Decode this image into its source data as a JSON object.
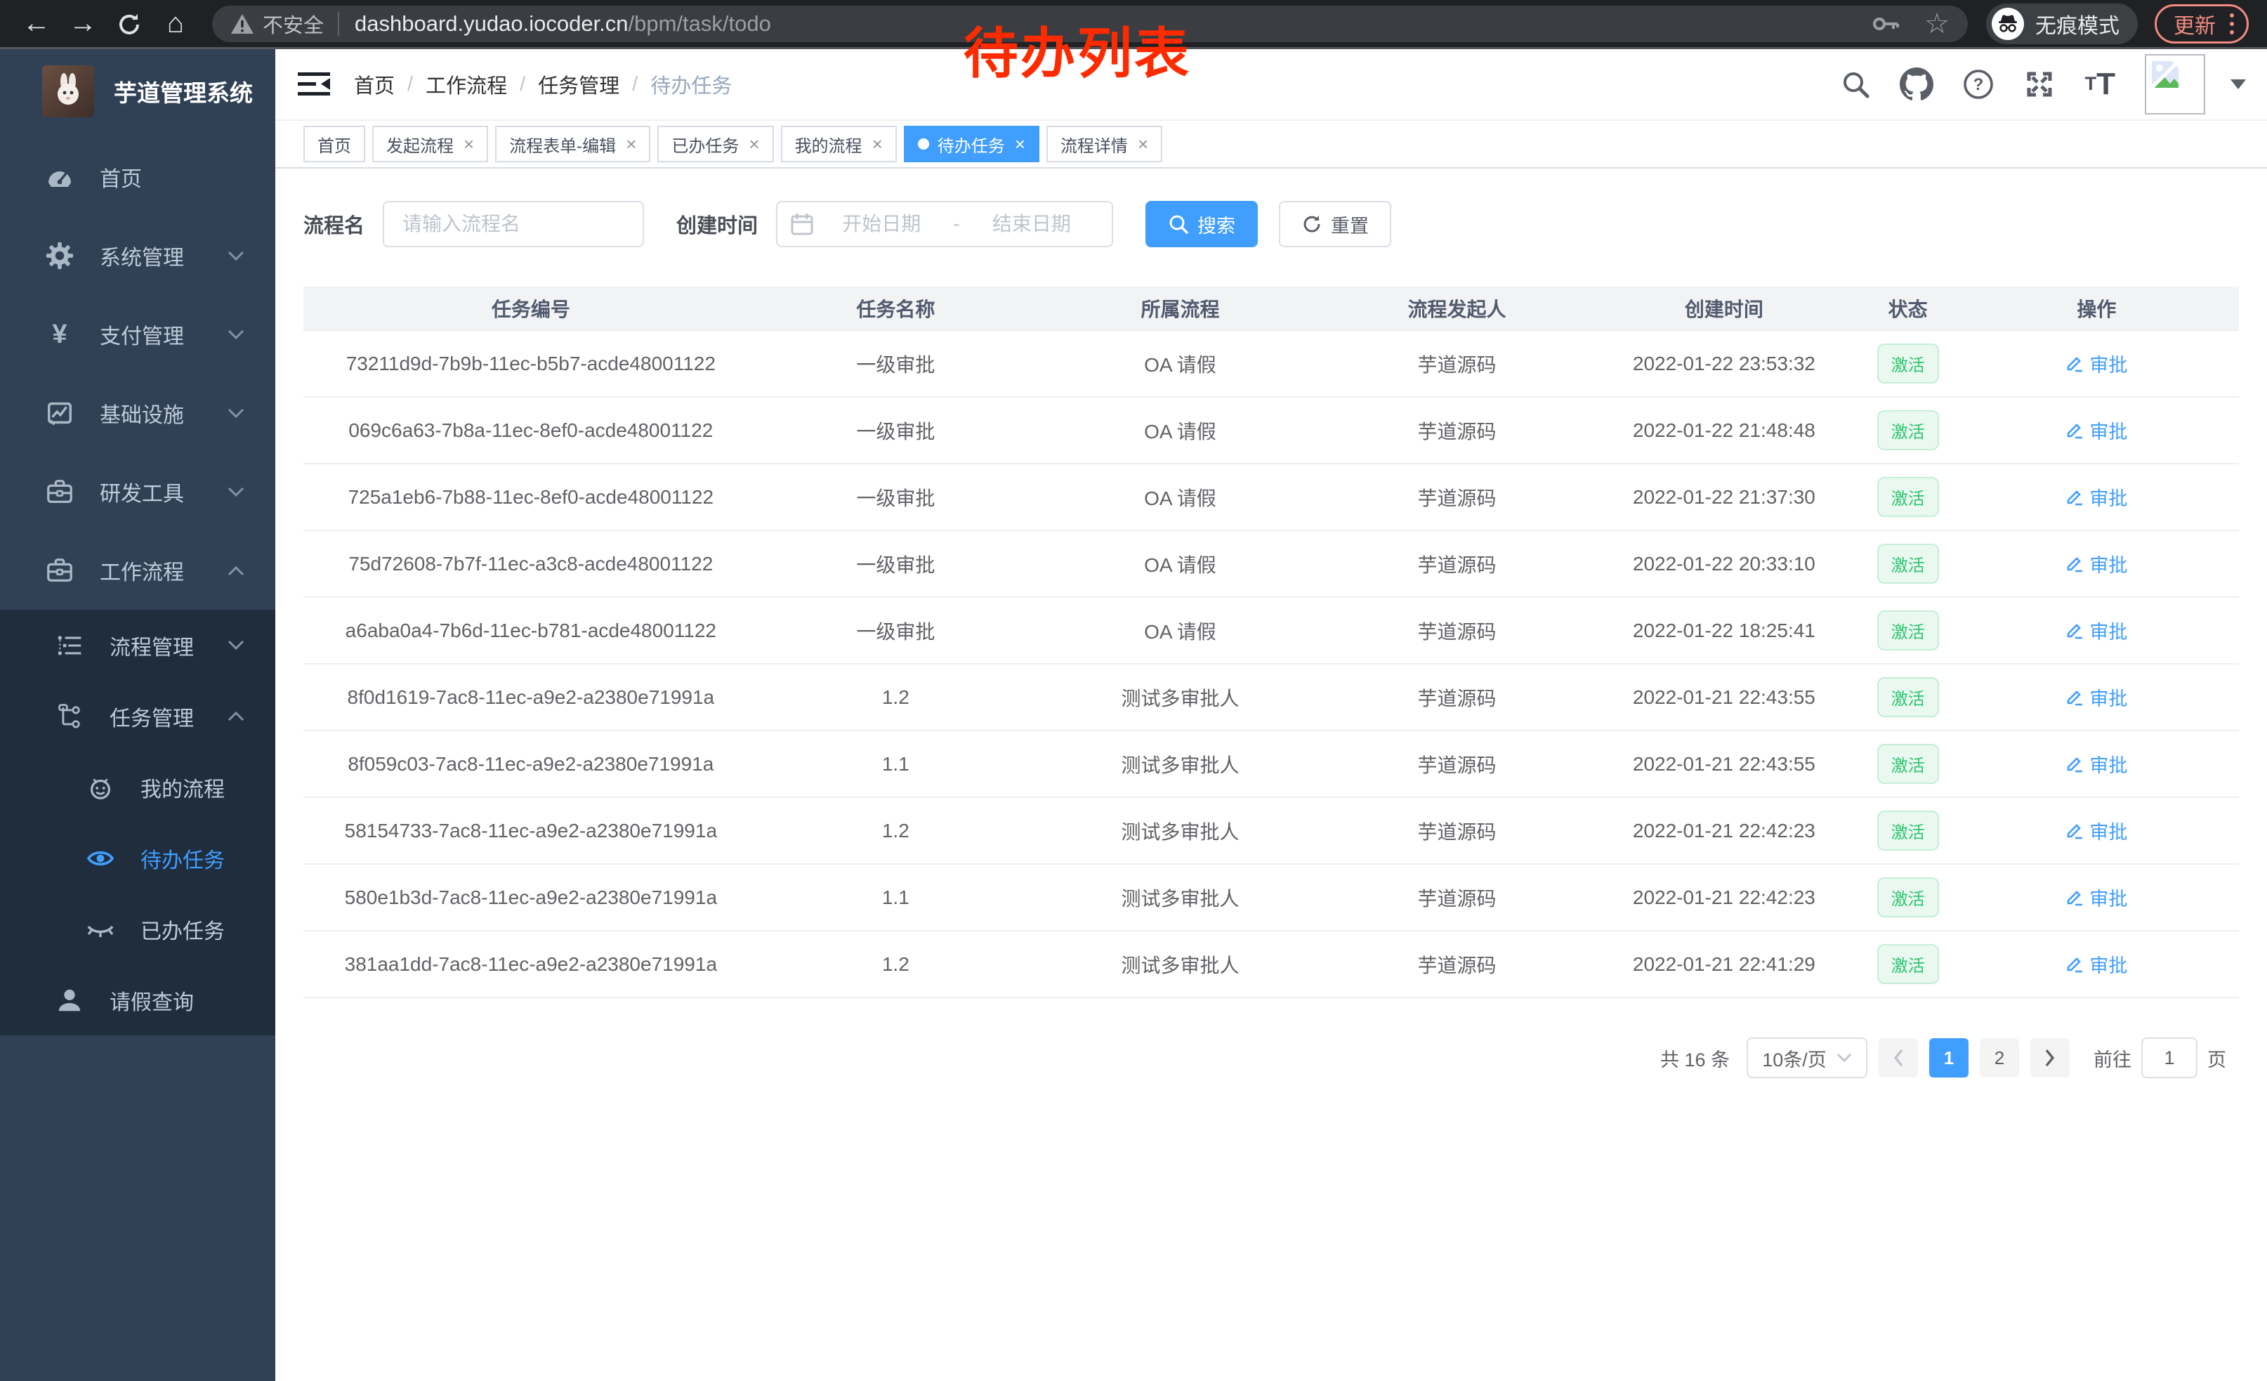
{
  "browser": {
    "security_label": "不安全",
    "url_host": "dashboard.yudao.iocoder.cn",
    "url_path": "/bpm/task/todo",
    "incognito_label": "无痕模式",
    "update_label": "更新"
  },
  "annotation": "待办列表",
  "icons": {
    "back": "←",
    "forward": "→",
    "home": "⌂",
    "star": "☆",
    "close": "×",
    "yen": "¥",
    "t_small": "T",
    "t_large": "T",
    "rabbit": "🐰"
  },
  "sidebar": {
    "logo_title": "芋道管理系统",
    "menu": [
      {
        "label": "首页",
        "icon": "dashboard-icon",
        "level": 0,
        "arrow": null,
        "dark": false,
        "active": false
      },
      {
        "label": "系统管理",
        "icon": "gear-icon",
        "level": 0,
        "arrow": "down",
        "dark": false,
        "active": false
      },
      {
        "label": "支付管理",
        "icon": "yen-icon",
        "level": 0,
        "arrow": "down",
        "dark": false,
        "active": false
      },
      {
        "label": "基础设施",
        "icon": "infrastructure-icon",
        "level": 0,
        "arrow": "down",
        "dark": false,
        "active": false
      },
      {
        "label": "研发工具",
        "icon": "toolbox-icon",
        "level": 0,
        "arrow": "down",
        "dark": false,
        "active": false
      },
      {
        "label": "工作流程",
        "icon": "workflow-icon",
        "level": 0,
        "arrow": "up",
        "dark": false,
        "active": false
      },
      {
        "label": "流程管理",
        "icon": "process-list-icon",
        "level": 1,
        "arrow": "down",
        "dark": true,
        "active": false
      },
      {
        "label": "任务管理",
        "icon": "task-tree-icon",
        "level": 1,
        "arrow": "up",
        "dark": true,
        "active": false
      },
      {
        "label": "我的流程",
        "icon": "my-process-icon",
        "level": 2,
        "arrow": null,
        "dark": true,
        "active": false
      },
      {
        "label": "待办任务",
        "icon": "eye-open-icon",
        "level": 2,
        "arrow": null,
        "dark": true,
        "active": true
      },
      {
        "label": "已办任务",
        "icon": "eye-closed-icon",
        "level": 2,
        "arrow": null,
        "dark": true,
        "active": false
      },
      {
        "label": "请假查询",
        "icon": "person-icon",
        "level": 1,
        "arrow": null,
        "dark": true,
        "active": false
      }
    ]
  },
  "navbar": {
    "separator": "/",
    "breadcrumbs": [
      {
        "label": "首页",
        "current": false
      },
      {
        "label": "工作流程",
        "current": false
      },
      {
        "label": "任务管理",
        "current": false
      },
      {
        "label": "待办任务",
        "current": true
      }
    ]
  },
  "tabs": [
    {
      "label": "首页",
      "closable": false,
      "active": false
    },
    {
      "label": "发起流程",
      "closable": true,
      "active": false
    },
    {
      "label": "流程表单-编辑",
      "closable": true,
      "active": false
    },
    {
      "label": "已办任务",
      "closable": true,
      "active": false
    },
    {
      "label": "我的流程",
      "closable": true,
      "active": false
    },
    {
      "label": "待办任务",
      "closable": true,
      "active": true
    },
    {
      "label": "流程详情",
      "closable": true,
      "active": false
    }
  ],
  "filters": {
    "name_label": "流程名",
    "name_placeholder": "请输入流程名",
    "time_label": "创建时间",
    "start_placeholder": "开始日期",
    "separator": "-",
    "end_placeholder": "结束日期",
    "search_label": "搜索",
    "reset_label": "重置"
  },
  "table": {
    "headers": [
      "任务编号",
      "任务名称",
      "所属流程",
      "流程发起人",
      "创建时间",
      "状态",
      "操作"
    ],
    "status_label": "激活",
    "action_label": "审批",
    "rows": [
      {
        "id": "73211d9d-7b9b-11ec-b5b7-acde48001122",
        "name": "一级审批",
        "process": "OA 请假",
        "starter": "芋道源码",
        "time": "2022-01-22 23:53:32"
      },
      {
        "id": "069c6a63-7b8a-11ec-8ef0-acde48001122",
        "name": "一级审批",
        "process": "OA 请假",
        "starter": "芋道源码",
        "time": "2022-01-22 21:48:48"
      },
      {
        "id": "725a1eb6-7b88-11ec-8ef0-acde48001122",
        "name": "一级审批",
        "process": "OA 请假",
        "starter": "芋道源码",
        "time": "2022-01-22 21:37:30"
      },
      {
        "id": "75d72608-7b7f-11ec-a3c8-acde48001122",
        "name": "一级审批",
        "process": "OA 请假",
        "starter": "芋道源码",
        "time": "2022-01-22 20:33:10"
      },
      {
        "id": "a6aba0a4-7b6d-11ec-b781-acde48001122",
        "name": "一级审批",
        "process": "OA 请假",
        "starter": "芋道源码",
        "time": "2022-01-22 18:25:41"
      },
      {
        "id": "8f0d1619-7ac8-11ec-a9e2-a2380e71991a",
        "name": "1.2",
        "process": "测试多审批人",
        "starter": "芋道源码",
        "time": "2022-01-21 22:43:55"
      },
      {
        "id": "8f059c03-7ac8-11ec-a9e2-a2380e71991a",
        "name": "1.1",
        "process": "测试多审批人",
        "starter": "芋道源码",
        "time": "2022-01-21 22:43:55"
      },
      {
        "id": "58154733-7ac8-11ec-a9e2-a2380e71991a",
        "name": "1.2",
        "process": "测试多审批人",
        "starter": "芋道源码",
        "time": "2022-01-21 22:42:23"
      },
      {
        "id": "580e1b3d-7ac8-11ec-a9e2-a2380e71991a",
        "name": "1.1",
        "process": "测试多审批人",
        "starter": "芋道源码",
        "time": "2022-01-21 22:42:23"
      },
      {
        "id": "381aa1dd-7ac8-11ec-a9e2-a2380e71991a",
        "name": "1.2",
        "process": "测试多审批人",
        "starter": "芋道源码",
        "time": "2022-01-21 22:41:29"
      }
    ]
  },
  "pagination": {
    "total_text": "共 16 条",
    "page_size": "10条/页",
    "pages": [
      "1",
      "2"
    ],
    "active_page": "1",
    "goto_label": "前往",
    "goto_value": "1",
    "goto_suffix": "页"
  },
  "colors": {
    "accent": "#409eff",
    "success_text": "#2ec56e",
    "sidebar_bg": "#304156",
    "submenu_bg": "#1f2d3d",
    "update_red": "#f28b82",
    "annotation_red": "#ff2b00"
  }
}
